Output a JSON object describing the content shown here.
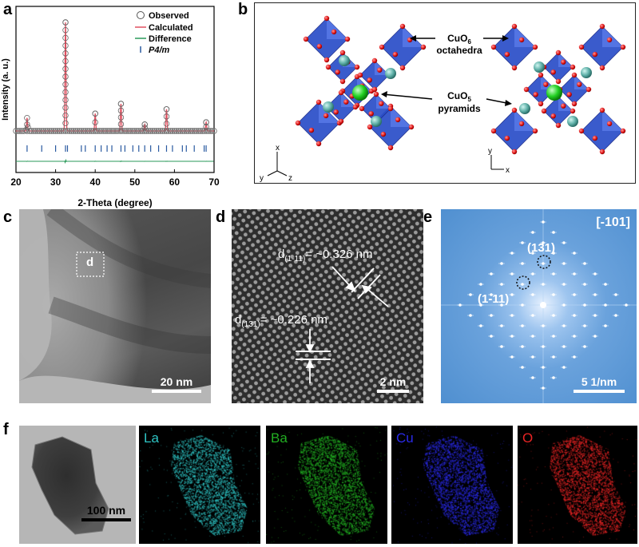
{
  "panels": {
    "a": {
      "label": "a"
    },
    "b": {
      "label": "b"
    },
    "c": {
      "label": "c",
      "region_label": "d",
      "scale": "20 nm"
    },
    "d": {
      "label": "d",
      "d1": "d",
      "d1_sub": "(1-11)",
      "d1_val": "= ~0.326 nm",
      "d2": "d",
      "d2_sub": "(131)",
      "d2_val": "= ~0.226 nm",
      "scale": "2 nm"
    },
    "e": {
      "label": "e",
      "zone": "[-101]",
      "spot1": "(131)",
      "spot2": "(1-11)",
      "scale": "5 1/nm"
    },
    "f": {
      "label": "f",
      "scale": "100 nm",
      "maps": [
        {
          "element": "La",
          "color": "#2ec4c4"
        },
        {
          "element": "Ba",
          "color": "#22b022"
        },
        {
          "element": "Cu",
          "color": "#2a2ae8"
        },
        {
          "element": "O",
          "color": "#e82424"
        }
      ]
    }
  },
  "structure": {
    "label_octa_1": "CuO",
    "label_octa_sub": "6",
    "label_octa_2": "octahedra",
    "label_pyr_1": "CuO",
    "label_pyr_sub": "5",
    "label_pyr_2": "pyramids",
    "axes_left": {
      "up": "x",
      "left": "y",
      "right": "z"
    },
    "axes_right": {
      "up": "y",
      "right": "x"
    }
  },
  "chart_data": {
    "type": "line",
    "xlabel": "2-Theta (degree)",
    "ylabel": "Intensity (a. u.)",
    "xlim": [
      20,
      70
    ],
    "xticks": [
      20,
      30,
      40,
      50,
      60,
      70
    ],
    "legend": [
      "Observed",
      "Calculated",
      "Difference",
      "P4/m"
    ],
    "legend_placement": "top-right",
    "peaks": [
      {
        "x": 22.8,
        "y": 12
      },
      {
        "x": 32.5,
        "y": 100
      },
      {
        "x": 40.0,
        "y": 16
      },
      {
        "x": 46.5,
        "y": 25
      },
      {
        "x": 52.5,
        "y": 6
      },
      {
        "x": 58.0,
        "y": 20
      },
      {
        "x": 68.0,
        "y": 8
      }
    ],
    "reflection_ticks": [
      22.8,
      26.5,
      30.0,
      32.5,
      33.0,
      36.5,
      37.5,
      40.0,
      41.5,
      43.0,
      44.2,
      46.5,
      47.5,
      49.5,
      51.0,
      52.5,
      54.0,
      56.0,
      58.0,
      59.5,
      62.0,
      63.0,
      65.0,
      67.5,
      68.0
    ]
  }
}
